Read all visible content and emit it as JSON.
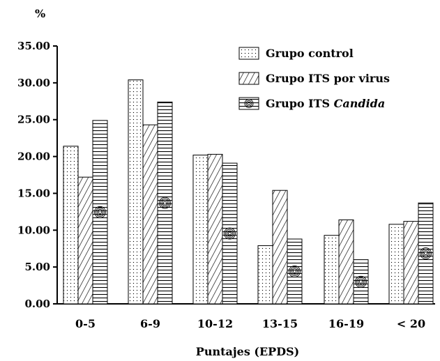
{
  "chart_data": {
    "type": "bar",
    "ylabel": "%",
    "xlabel": "Puntajes (EPDS)",
    "ylim": [
      0,
      35
    ],
    "yticks": [
      "0.00",
      "5.00",
      "10.00",
      "15.00",
      "20.00",
      "25.00",
      "30.00",
      "35.00"
    ],
    "categories": [
      "0-5",
      "6-9",
      "10-12",
      "13-15",
      "16-19",
      "< 20"
    ],
    "grid": false,
    "legend_position": "top-right",
    "series": [
      {
        "name": "Grupo control",
        "pattern": "dots",
        "values": [
          21.4,
          30.4,
          20.2,
          7.9,
          9.3,
          10.8
        ]
      },
      {
        "name": "Grupo ITS por virus",
        "pattern": "diagonal",
        "values": [
          17.2,
          24.3,
          20.3,
          15.4,
          11.4,
          11.2
        ]
      },
      {
        "name_prefix": "Grupo ITS ",
        "name_italic": "Candida",
        "pattern": "spiral",
        "values": [
          24.9,
          27.4,
          19.1,
          8.8,
          6.0,
          13.7
        ]
      }
    ],
    "colors": {
      "fill": "#ffffff",
      "stroke": "#000000"
    }
  }
}
